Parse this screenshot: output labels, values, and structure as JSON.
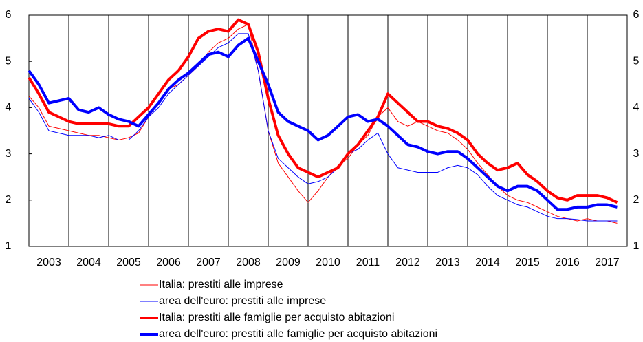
{
  "chart_data": {
    "type": "line",
    "x": [
      2003,
      2003.25,
      2003.5,
      2003.75,
      2004,
      2004.25,
      2004.5,
      2004.75,
      2005,
      2005.25,
      2005.5,
      2005.75,
      2006,
      2006.25,
      2006.5,
      2006.75,
      2007,
      2007.25,
      2007.5,
      2007.75,
      2008,
      2008.25,
      2008.5,
      2008.75,
      2009,
      2009.25,
      2009.5,
      2009.75,
      2010,
      2010.25,
      2010.5,
      2010.75,
      2011,
      2011.25,
      2011.5,
      2011.75,
      2012,
      2012.25,
      2012.5,
      2012.75,
      2013,
      2013.25,
      2013.5,
      2013.75,
      2014,
      2014.25,
      2014.5,
      2014.75,
      2015,
      2015.25,
      2015.5,
      2015.75,
      2016,
      2016.25,
      2016.5,
      2016.75,
      2017,
      2017.25,
      2017.5,
      2017.75
    ],
    "series": [
      {
        "name": "Italia: prestiti alle imprese",
        "color": "#ff0000",
        "width": 1,
        "values": [
          4.25,
          4.0,
          3.6,
          3.55,
          3.5,
          3.45,
          3.4,
          3.4,
          3.35,
          3.3,
          3.35,
          3.45,
          3.8,
          4.1,
          4.4,
          4.5,
          4.7,
          4.9,
          5.2,
          5.4,
          5.5,
          5.7,
          5.8,
          4.8,
          3.5,
          2.8,
          2.5,
          2.2,
          1.95,
          2.2,
          2.5,
          2.75,
          2.9,
          3.2,
          3.4,
          3.8,
          4.0,
          3.7,
          3.6,
          3.7,
          3.6,
          3.5,
          3.45,
          3.3,
          3.1,
          2.8,
          2.55,
          2.3,
          2.1,
          2.0,
          1.95,
          1.85,
          1.75,
          1.65,
          1.6,
          1.55,
          1.6,
          1.55,
          1.55,
          1.5
        ]
      },
      {
        "name": "area dell'euro: prestiti alle imprese",
        "color": "#0000ff",
        "width": 1,
        "values": [
          4.2,
          3.9,
          3.5,
          3.45,
          3.4,
          3.4,
          3.4,
          3.35,
          3.4,
          3.3,
          3.3,
          3.5,
          3.8,
          4.0,
          4.3,
          4.5,
          4.7,
          4.9,
          5.1,
          5.3,
          5.4,
          5.6,
          5.6,
          4.8,
          3.5,
          2.9,
          2.7,
          2.5,
          2.35,
          2.4,
          2.5,
          2.7,
          3.0,
          3.1,
          3.3,
          3.45,
          3.0,
          2.7,
          2.65,
          2.6,
          2.6,
          2.6,
          2.7,
          2.75,
          2.7,
          2.55,
          2.3,
          2.1,
          2.0,
          1.9,
          1.85,
          1.75,
          1.65,
          1.6,
          1.6,
          1.58,
          1.55,
          1.55,
          1.55,
          1.55
        ]
      },
      {
        "name": "Italia: prestiti alle famiglie per acquisto abitazioni",
        "color": "#ff0000",
        "width": 4,
        "values": [
          4.65,
          4.3,
          3.9,
          3.8,
          3.7,
          3.65,
          3.65,
          3.65,
          3.65,
          3.6,
          3.6,
          3.8,
          4.0,
          4.3,
          4.6,
          4.8,
          5.1,
          5.5,
          5.65,
          5.7,
          5.65,
          5.9,
          5.8,
          5.2,
          4.2,
          3.4,
          3.0,
          2.7,
          2.6,
          2.5,
          2.6,
          2.7,
          3.0,
          3.2,
          3.5,
          3.8,
          4.3,
          4.1,
          3.9,
          3.7,
          3.7,
          3.6,
          3.55,
          3.45,
          3.3,
          3.0,
          2.8,
          2.65,
          2.7,
          2.8,
          2.55,
          2.4,
          2.2,
          2.05,
          2.0,
          2.1,
          2.1,
          2.1,
          2.05,
          1.95
        ]
      },
      {
        "name": "area dell'euro: prestiti alle famiglie per acquisto abitazioni",
        "color": "#0000ff",
        "width": 4,
        "values": [
          4.8,
          4.5,
          4.1,
          4.15,
          4.2,
          3.95,
          3.9,
          4.0,
          3.85,
          3.75,
          3.7,
          3.6,
          3.85,
          4.1,
          4.4,
          4.6,
          4.75,
          4.95,
          5.15,
          5.2,
          5.1,
          5.35,
          5.5,
          5.0,
          4.5,
          3.9,
          3.7,
          3.6,
          3.5,
          3.3,
          3.4,
          3.6,
          3.8,
          3.85,
          3.7,
          3.75,
          3.6,
          3.4,
          3.2,
          3.15,
          3.05,
          3.0,
          3.05,
          3.05,
          2.9,
          2.7,
          2.5,
          2.3,
          2.2,
          2.3,
          2.3,
          2.2,
          2.0,
          1.8,
          1.8,
          1.85,
          1.85,
          1.9,
          1.9,
          1.85
        ]
      }
    ],
    "xlim": [
      2003,
      2018
    ],
    "xticks": [
      2003,
      2004,
      2005,
      2006,
      2007,
      2008,
      2009,
      2010,
      2011,
      2012,
      2013,
      2014,
      2015,
      2016,
      2017
    ],
    "ylim": [
      1,
      6
    ],
    "yticks": [
      1,
      2,
      3,
      4,
      5,
      6
    ],
    "vertical_grid": true,
    "right_axis_labels": true
  }
}
